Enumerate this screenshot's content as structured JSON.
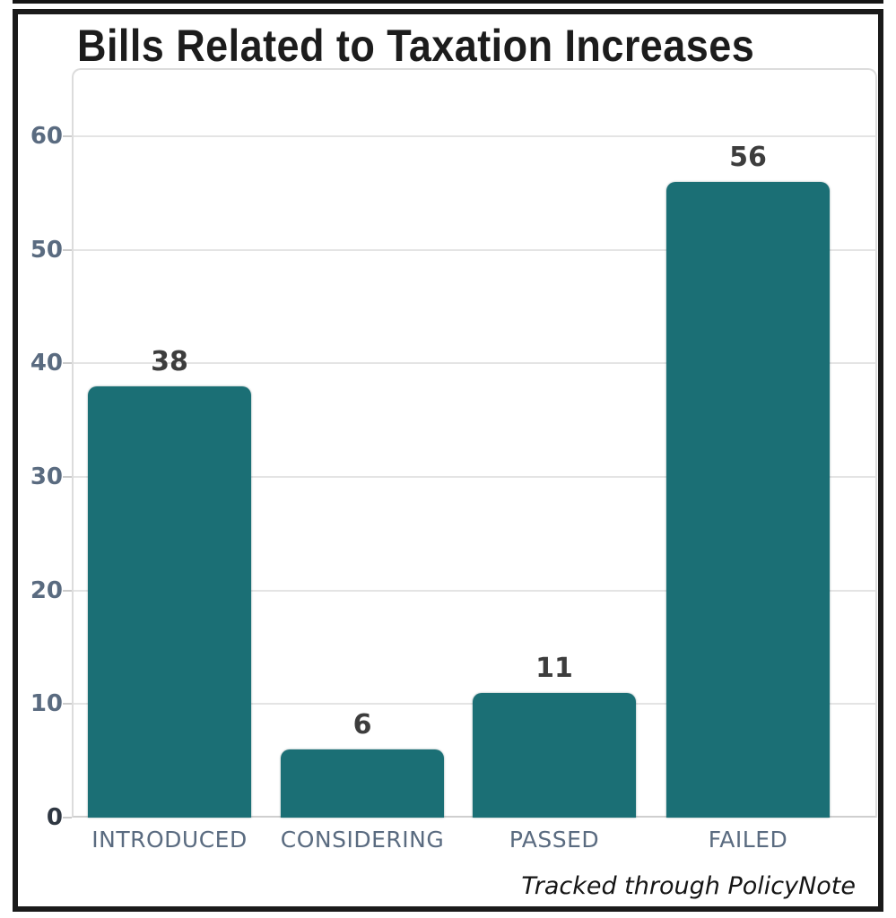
{
  "chart": {
    "title": "Bills Related to Taxation Increases",
    "source_note": "Tracked through PolicyNote"
  },
  "chart_data": {
    "type": "bar",
    "title": "Bills Related to Taxation Increases",
    "categories": [
      "INTRODUCED",
      "CONSIDERING",
      "PASSED",
      "FAILED"
    ],
    "values": [
      38,
      6,
      11,
      56
    ],
    "value_labels": [
      "38",
      "6",
      "11",
      "56"
    ],
    "xlabel": "",
    "ylabel": "",
    "yticks": [
      0,
      10,
      20,
      30,
      40,
      50,
      60
    ],
    "ylim": [
      0,
      66
    ],
    "grid": true,
    "legend": false,
    "annotation": "Tracked through PolicyNote",
    "colors": {
      "bar": "#1b6f75",
      "grid": "#e4e4e4",
      "axis_line": "#cfcfcf",
      "tick_label": "#5a6b80",
      "zero_tick_label": "#2f3742",
      "value_label": "#3d3d3d",
      "title": "#1c1c1c",
      "frame_border": "#1a1a1a",
      "background": "#ffffff"
    }
  }
}
